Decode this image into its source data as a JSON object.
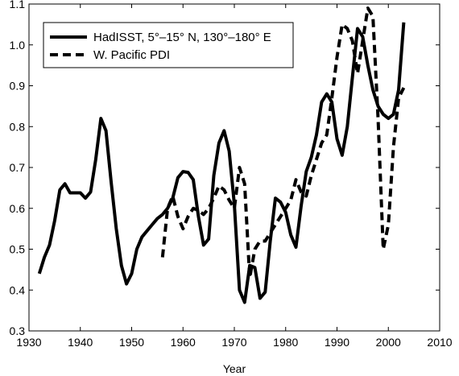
{
  "chart_data": {
    "type": "line",
    "title": "",
    "xlabel": "Year",
    "ylabel": "",
    "xlim": [
      1930,
      2010
    ],
    "ylim": [
      0.3,
      1.1
    ],
    "x_ticks": [
      1930,
      1940,
      1950,
      1960,
      1970,
      1980,
      1990,
      2000,
      2010
    ],
    "x_tick_labels": [
      "1930",
      "1940",
      "1950",
      "1960",
      "1970",
      "1980",
      "1990",
      "2000",
      "2010"
    ],
    "y_ticks": [
      0.3,
      0.4,
      0.5,
      0.6,
      0.7,
      0.8,
      0.9,
      1.0,
      1.1
    ],
    "y_tick_labels": [
      "0.3",
      "0.4",
      "0.5",
      "0.6",
      "0.7",
      "0.8",
      "0.9",
      "1.0",
      "1.1"
    ],
    "grid": false,
    "legend_position": "top-left",
    "series": [
      {
        "name": "HadISST, 5°–15° N, 130°–180° E",
        "style": "solid",
        "color": "#000000",
        "x": [
          1932,
          1933,
          1934,
          1935,
          1936,
          1937,
          1938,
          1939,
          1940,
          1941,
          1942,
          1943,
          1944,
          1945,
          1946,
          1947,
          1948,
          1949,
          1950,
          1951,
          1952,
          1953,
          1954,
          1955,
          1956,
          1957,
          1958,
          1959,
          1960,
          1961,
          1962,
          1963,
          1964,
          1965,
          1966,
          1967,
          1968,
          1969,
          1970,
          1971,
          1972,
          1973,
          1974,
          1975,
          1976,
          1977,
          1978,
          1979,
          1980,
          1981,
          1982,
          1983,
          1984,
          1985,
          1986,
          1987,
          1988,
          1989,
          1990,
          1991,
          1992,
          1993,
          1994,
          1995,
          1996,
          1997,
          1998,
          1999,
          2000,
          2001,
          2002,
          2003
        ],
        "values": [
          0.44,
          0.48,
          0.51,
          0.57,
          0.645,
          0.66,
          0.638,
          0.638,
          0.638,
          0.625,
          0.64,
          0.72,
          0.82,
          0.79,
          0.665,
          0.55,
          0.46,
          0.415,
          0.44,
          0.5,
          0.53,
          0.545,
          0.56,
          0.575,
          0.585,
          0.6,
          0.625,
          0.675,
          0.69,
          0.688,
          0.67,
          0.58,
          0.51,
          0.525,
          0.68,
          0.76,
          0.79,
          0.74,
          0.61,
          0.4,
          0.37,
          0.46,
          0.455,
          0.38,
          0.395,
          0.52,
          0.625,
          0.615,
          0.59,
          0.535,
          0.505,
          0.605,
          0.69,
          0.725,
          0.78,
          0.86,
          0.88,
          0.86,
          0.77,
          0.73,
          0.8,
          0.92,
          1.04,
          1.02,
          0.95,
          0.89,
          0.85,
          0.83,
          0.82,
          0.83,
          0.89,
          1.055
        ]
      },
      {
        "name": "W. Pacific PDI",
        "style": "dashed",
        "color": "#000000",
        "x": [
          1956,
          1957,
          1958,
          1959,
          1960,
          1961,
          1962,
          1963,
          1964,
          1965,
          1966,
          1967,
          1968,
          1969,
          1970,
          1971,
          1972,
          1973,
          1974,
          1975,
          1976,
          1977,
          1978,
          1979,
          1980,
          1981,
          1982,
          1983,
          1984,
          1985,
          1986,
          1987,
          1988,
          1989,
          1990,
          1991,
          1992,
          1993,
          1994,
          1995,
          1996,
          1997,
          1998,
          1999,
          2000,
          2001,
          2002,
          2003
        ],
        "values": [
          0.48,
          0.6,
          0.63,
          0.58,
          0.55,
          0.58,
          0.6,
          0.595,
          0.585,
          0.6,
          0.625,
          0.655,
          0.645,
          0.62,
          0.6,
          0.7,
          0.66,
          0.43,
          0.5,
          0.52,
          0.52,
          0.54,
          0.56,
          0.58,
          0.6,
          0.62,
          0.67,
          0.64,
          0.63,
          0.68,
          0.72,
          0.76,
          0.78,
          0.87,
          0.97,
          1.05,
          1.04,
          1.01,
          0.93,
          1.01,
          1.09,
          1.07,
          0.82,
          0.5,
          0.56,
          0.75,
          0.87,
          0.895
        ]
      }
    ]
  }
}
